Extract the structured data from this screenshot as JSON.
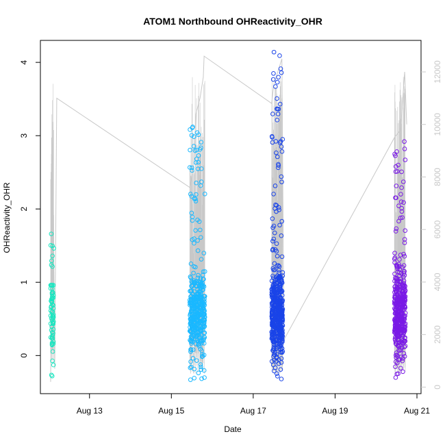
{
  "chart_data": {
    "type": "scatter",
    "title": "ATOM1 Northbound OHReactivity_OHR",
    "xlabel": "Date",
    "ylabel": "OHReactivity_OHR",
    "x_range_days": [
      11.8,
      21.1
    ],
    "xlim_dates": [
      "Aug 11 19:00",
      "Aug 21 02:00"
    ],
    "ylim": [
      -0.52,
      4.3
    ],
    "y2lim": [
      -250,
      13200
    ],
    "x_ticks": [
      {
        "day": 13,
        "label": "Aug 13"
      },
      {
        "day": 15,
        "label": "Aug 15"
      },
      {
        "day": 17,
        "label": "Aug 17"
      },
      {
        "day": 19,
        "label": "Aug 19"
      },
      {
        "day": 21,
        "label": "Aug 21"
      }
    ],
    "y_ticks": [
      0,
      1,
      2,
      3,
      4
    ],
    "y2_ticks": [
      0,
      2000,
      4000,
      6000,
      8000,
      10000,
      12000
    ],
    "grid": false,
    "legend": "none",
    "colors": {
      "aug12": "#19e6c0",
      "aug15": "#1ab8ff",
      "aug17": "#1a44e8",
      "aug20": "#7a1ae6",
      "secondary_line": "#c8c8c8"
    },
    "series": [
      {
        "color": "#19e6c0",
        "x_range": [
          12.05,
          12.13
        ],
        "y_min": -0.28,
        "y_max": 1.66,
        "n": 70,
        "median": 0.3
      },
      {
        "color": "#1ab8ff",
        "x_range": [
          15.45,
          15.82
        ],
        "y_min": -0.33,
        "y_max": 3.12,
        "n": 420,
        "median": 0.55
      },
      {
        "color": "#1a44e8",
        "x_range": [
          17.45,
          17.72
        ],
        "y_min": -0.32,
        "y_max": 4.14,
        "n": 520,
        "median": 0.6
      },
      {
        "color": "#7a1ae6",
        "x_range": [
          20.45,
          20.72
        ],
        "y_min": -0.3,
        "y_max": 2.92,
        "n": 420,
        "median": 0.5
      }
    ],
    "secondary_series": {
      "name": "",
      "x": [
        12.05,
        12.1,
        12.15,
        12.2,
        15.45,
        15.55,
        15.6,
        15.7,
        15.78,
        15.8,
        17.45,
        17.5,
        17.6,
        17.7,
        17.75,
        20.45,
        20.6,
        20.7,
        20.75
      ],
      "y": [
        200,
        10100,
        700,
        11000,
        7600,
        8500,
        10400,
        11000,
        11800,
        12600,
        10800,
        11500,
        12000,
        12500,
        1800,
        9500,
        9800,
        12000,
        10000
      ]
    }
  }
}
